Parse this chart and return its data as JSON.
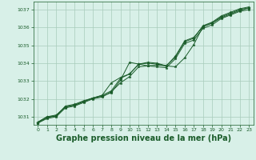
{
  "bg_color": "#d8f0e8",
  "grid_color": "#a8ccbb",
  "line_color": "#1a5c2a",
  "title": "Graphe pression niveau de la mer (hPa)",
  "title_color": "#1a5c2a",
  "title_fontsize": 7.0,
  "xlim": [
    -0.5,
    23.5
  ],
  "ylim": [
    1030.55,
    1037.45
  ],
  "yticks": [
    1031,
    1032,
    1033,
    1034,
    1035,
    1036,
    1037
  ],
  "xticks": [
    0,
    1,
    2,
    3,
    4,
    5,
    6,
    7,
    8,
    9,
    10,
    11,
    12,
    13,
    14,
    15,
    16,
    17,
    18,
    19,
    20,
    21,
    22,
    23
  ],
  "series": {
    "line1": {
      "x": [
        0,
        1,
        2,
        3,
        4,
        5,
        6,
        7,
        8,
        9,
        10,
        11,
        12,
        13,
        14,
        15,
        16,
        17,
        18,
        19,
        20,
        21,
        22,
        23
      ],
      "y": [
        1030.7,
        1031.0,
        1031.1,
        1031.55,
        1031.65,
        1031.85,
        1032.05,
        1032.15,
        1032.35,
        1033.05,
        1034.05,
        1033.95,
        1033.85,
        1033.9,
        1033.85,
        1033.8,
        1034.3,
        1035.05,
        1036.05,
        1036.25,
        1036.55,
        1036.75,
        1036.95,
        1037.1
      ]
    },
    "line2": {
      "x": [
        0,
        1,
        2,
        3,
        4,
        5,
        6,
        7,
        8,
        9,
        10,
        11,
        12,
        13,
        14,
        15,
        16,
        17,
        18,
        19,
        20,
        21,
        22,
        23
      ],
      "y": [
        1030.7,
        1031.0,
        1031.05,
        1031.6,
        1031.7,
        1031.9,
        1032.05,
        1032.2,
        1032.45,
        1033.15,
        1033.4,
        1033.95,
        1034.0,
        1033.95,
        1033.85,
        1034.4,
        1035.25,
        1035.45,
        1036.05,
        1036.25,
        1036.6,
        1036.8,
        1037.0,
        1037.1
      ]
    },
    "line3": {
      "x": [
        0,
        1,
        2,
        3,
        4,
        5,
        6,
        7,
        8,
        9,
        10,
        11,
        12,
        13,
        14,
        15,
        16,
        17,
        18,
        19,
        20,
        21,
        22,
        23
      ],
      "y": [
        1030.65,
        1030.95,
        1031.05,
        1031.55,
        1031.65,
        1031.85,
        1032.05,
        1032.2,
        1032.9,
        1033.2,
        1033.4,
        1033.95,
        1034.05,
        1034.0,
        1033.85,
        1034.35,
        1035.2,
        1035.4,
        1036.1,
        1036.3,
        1036.65,
        1036.85,
        1037.05,
        1037.15
      ]
    },
    "line4": {
      "x": [
        0,
        1,
        2,
        3,
        4,
        5,
        6,
        7,
        8,
        9,
        10,
        11,
        12,
        13,
        14,
        15,
        16,
        17,
        18,
        19,
        20,
        21,
        22,
        23
      ],
      "y": [
        1030.65,
        1030.9,
        1031.0,
        1031.5,
        1031.6,
        1031.8,
        1032.0,
        1032.1,
        1032.4,
        1032.9,
        1033.25,
        1033.8,
        1033.85,
        1033.8,
        1033.75,
        1034.25,
        1035.1,
        1035.3,
        1035.95,
        1036.15,
        1036.5,
        1036.7,
        1036.9,
        1037.0
      ]
    }
  }
}
